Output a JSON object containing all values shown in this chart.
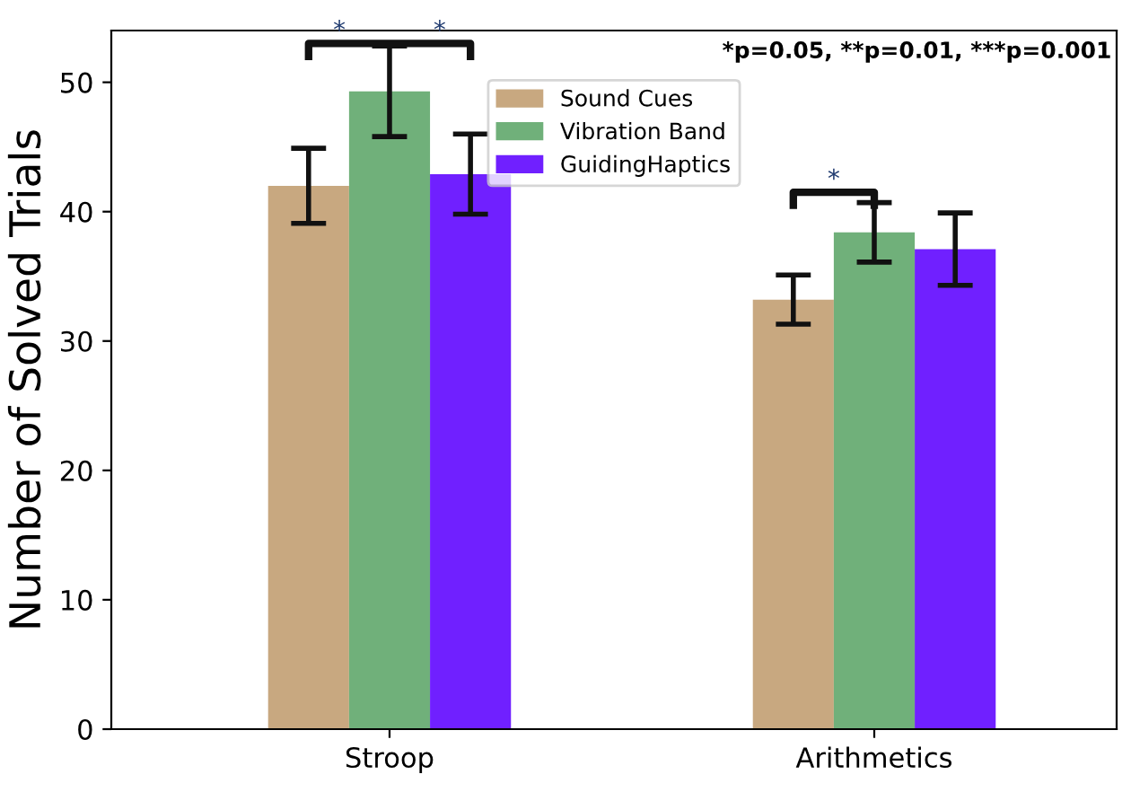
{
  "chart_data": {
    "type": "bar",
    "categories": [
      "Stroop",
      "Arithmetics"
    ],
    "ylabel": "Number of Solved Trials",
    "series": [
      {
        "name": "Sound Cues",
        "color": "#c8a880",
        "values": [
          42.0,
          33.2
        ],
        "errors": [
          2.9,
          1.9
        ]
      },
      {
        "name": "Vibration Band",
        "color": "#70b07a",
        "values": [
          49.3,
          38.4
        ],
        "errors": [
          3.5,
          2.3
        ]
      },
      {
        "name": "GuidingHaptics",
        "color": "#7020ff",
        "values": [
          42.9,
          37.1
        ],
        "errors": [
          3.1,
          2.8
        ]
      }
    ],
    "ylim": [
      0,
      54
    ],
    "yticks": [
      0,
      10,
      20,
      30,
      40,
      50
    ],
    "grid": false,
    "legend": "top",
    "annotations": [
      "*",
      "*",
      "*",
      "*p=0.05, **p=0.01, ***p=0.001"
    ]
  }
}
